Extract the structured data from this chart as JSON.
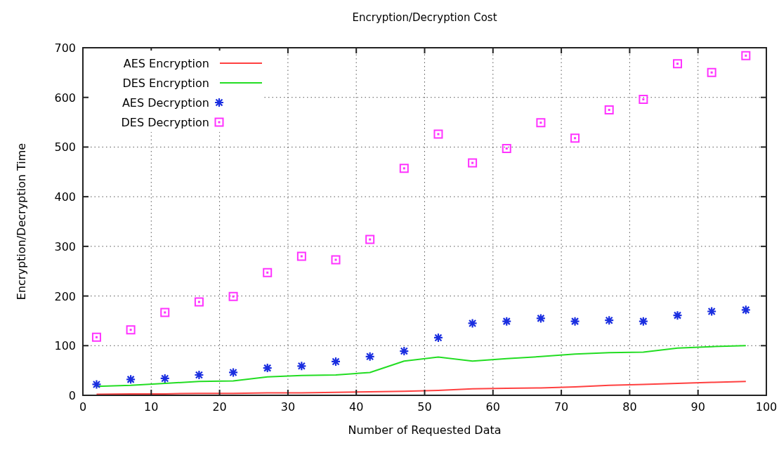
{
  "chart_data": {
    "type": "line",
    "title": "Encryption/Decryption Cost",
    "xlabel": "Number of Requested Data",
    "ylabel": "Encryption/Decryption Time",
    "x": [
      2,
      7,
      12,
      17,
      22,
      27,
      32,
      37,
      42,
      47,
      52,
      57,
      62,
      67,
      72,
      77,
      82,
      87,
      92,
      97
    ],
    "series": [
      {
        "name": "AES Encryption",
        "color": "#ff4040",
        "marker": "none",
        "values": [
          2,
          3,
          3,
          4,
          4,
          5,
          5,
          6,
          7,
          8,
          10,
          13,
          14,
          15,
          17,
          20,
          22,
          24,
          26,
          28
        ]
      },
      {
        "name": "DES Encryption",
        "color": "#22dd22",
        "marker": "none",
        "values": [
          18,
          20,
          24,
          28,
          29,
          37,
          40,
          41,
          46,
          69,
          77,
          69,
          74,
          78,
          83,
          86,
          87,
          95,
          98,
          100
        ]
      },
      {
        "name": "AES Decryption",
        "type": "scatter",
        "color": "#1a2ee0",
        "marker": "cross",
        "values": [
          22,
          32,
          34,
          41,
          46,
          55,
          59,
          68,
          78,
          89,
          116,
          145,
          149,
          155,
          149,
          151,
          149,
          161,
          169,
          172
        ]
      },
      {
        "name": "DES Decryption",
        "type": "scatter",
        "color": "#ff33ff",
        "marker": "square",
        "values": [
          117,
          132,
          167,
          188,
          199,
          247,
          280,
          273,
          314,
          457,
          526,
          468,
          497,
          549,
          518,
          575,
          596,
          668,
          650,
          684
        ]
      }
    ],
    "xlim": [
      0,
      100
    ],
    "xticks": [
      0,
      10,
      20,
      30,
      40,
      50,
      60,
      70,
      80,
      90,
      100
    ],
    "ylim": [
      0,
      700
    ],
    "yticks": [
      0,
      100,
      200,
      300,
      400,
      500,
      600,
      700
    ],
    "grid": true,
    "legend": "top left"
  }
}
